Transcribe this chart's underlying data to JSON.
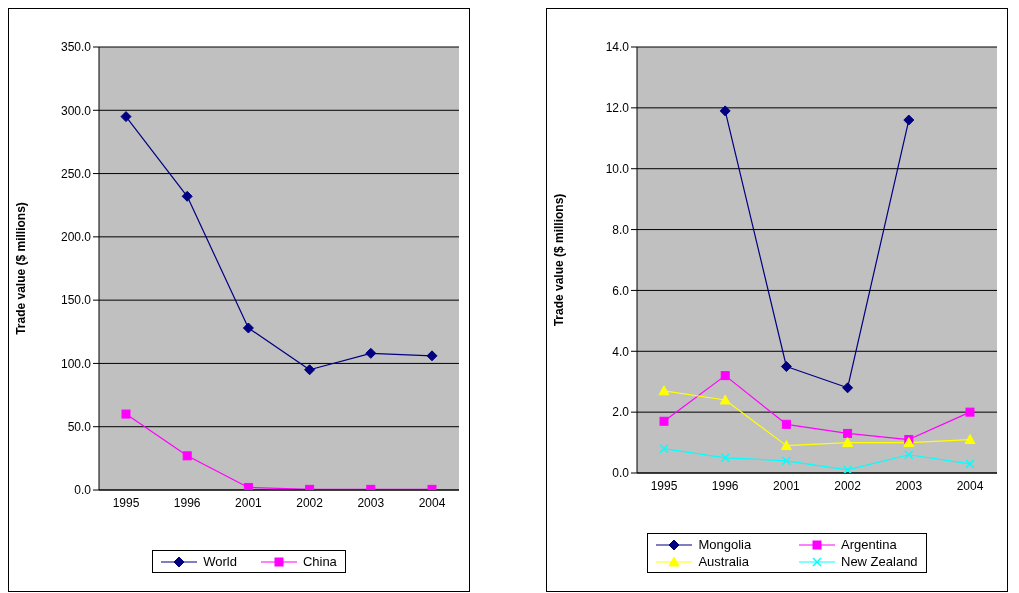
{
  "chart_data": [
    {
      "type": "line",
      "ylabel": "Trade value ($ millions)",
      "categories": [
        "1995",
        "1996",
        "2001",
        "2002",
        "2003",
        "2004"
      ],
      "ylim": [
        0,
        350
      ],
      "yticks": [
        {
          "value": 0,
          "label": "0.0"
        },
        {
          "value": 50,
          "label": "50.0"
        },
        {
          "value": 100,
          "label": "100.0"
        },
        {
          "value": 150,
          "label": "150.0"
        },
        {
          "value": 200,
          "label": "200.0"
        },
        {
          "value": 250,
          "label": "250.0"
        },
        {
          "value": 300,
          "label": "300.0"
        },
        {
          "value": 350,
          "label": "350.0"
        }
      ],
      "grid": "y",
      "legend": "bottom",
      "series": [
        {
          "name": "World",
          "color": "#000080",
          "marker": "diamond",
          "values": [
            295,
            232,
            128,
            95,
            108,
            106
          ]
        },
        {
          "name": "China",
          "color": "#ff00ff",
          "marker": "square",
          "values": [
            60,
            27,
            2,
            0.5,
            0.5,
            0.5
          ]
        }
      ]
    },
    {
      "type": "line",
      "ylabel": "Trade value ($ millions)",
      "categories": [
        "1995",
        "1996",
        "2001",
        "2002",
        "2003",
        "2004"
      ],
      "ylim": [
        0,
        14
      ],
      "yticks": [
        {
          "value": 0,
          "label": "0.0"
        },
        {
          "value": 2,
          "label": "2.0"
        },
        {
          "value": 4,
          "label": "4.0"
        },
        {
          "value": 6,
          "label": "6.0"
        },
        {
          "value": 8,
          "label": "8.0"
        },
        {
          "value": 10,
          "label": "10.0"
        },
        {
          "value": 12,
          "label": "12.0"
        },
        {
          "value": 14,
          "label": "14.0"
        }
      ],
      "grid": "y",
      "legend": "bottom",
      "series": [
        {
          "name": "Mongolia",
          "color": "#000080",
          "marker": "diamond",
          "values": [
            null,
            11.9,
            3.5,
            2.8,
            11.6,
            null
          ]
        },
        {
          "name": "Argentina",
          "color": "#ff00ff",
          "marker": "square",
          "values": [
            1.7,
            3.2,
            1.6,
            1.3,
            1.1,
            2.0
          ]
        },
        {
          "name": "Australia",
          "color": "#ffff00",
          "marker": "triangle",
          "values": [
            2.7,
            2.4,
            0.9,
            1.0,
            1.0,
            1.1
          ]
        },
        {
          "name": "New Zealand",
          "color": "#00ffff",
          "marker": "cross",
          "values": [
            0.8,
            0.5,
            0.4,
            0.1,
            0.6,
            0.3
          ]
        }
      ]
    }
  ]
}
